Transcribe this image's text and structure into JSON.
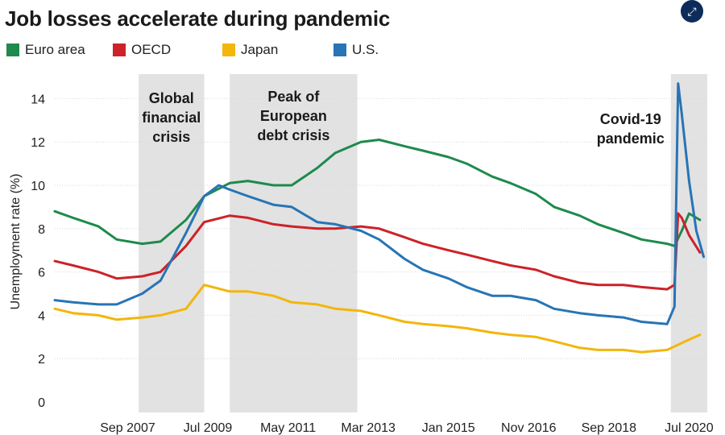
{
  "chart_data": {
    "type": "line",
    "title": "Job losses accelerate during pandemic",
    "xlabel": "",
    "ylabel": "Unemployment rate (%)",
    "ylim": [
      0,
      15
    ],
    "yticks": [
      0,
      2,
      4,
      6,
      8,
      10,
      12,
      14
    ],
    "xlim": [
      "2006-01",
      "2020-12"
    ],
    "xtick_labels": [
      {
        "label": "Sep 2007",
        "date": "2007-09"
      },
      {
        "label": "Jul 2009",
        "date": "2009-07"
      },
      {
        "label": "May 2011",
        "date": "2011-05"
      },
      {
        "label": "Mar 2013",
        "date": "2013-03"
      },
      {
        "label": "Jan 2015",
        "date": "2015-01"
      },
      {
        "label": "Nov 2016",
        "date": "2016-11"
      },
      {
        "label": "Sep 2018",
        "date": "2018-09"
      },
      {
        "label": "Jul 2020",
        "date": "2020-07"
      }
    ],
    "grid": true,
    "legend_position": "top-left",
    "shaded_periods": [
      {
        "label": "Global financial crisis",
        "start": "2007-12",
        "end": "2009-06"
      },
      {
        "label": "Peak of European debt crisis",
        "start": "2010-01",
        "end": "2012-12"
      },
      {
        "label": "Covid-19 pandemic",
        "start": "2020-02",
        "end": "2020-12"
      }
    ],
    "series": [
      {
        "name": "Euro area",
        "color": "#1e8a4c",
        "points": [
          [
            "2006-01",
            8.8
          ],
          [
            "2006-06",
            8.5
          ],
          [
            "2007-01",
            8.1
          ],
          [
            "2007-06",
            7.5
          ],
          [
            "2008-01",
            7.3
          ],
          [
            "2008-06",
            7.4
          ],
          [
            "2009-01",
            8.4
          ],
          [
            "2009-06",
            9.5
          ],
          [
            "2010-01",
            10.1
          ],
          [
            "2010-06",
            10.2
          ],
          [
            "2011-01",
            10.0
          ],
          [
            "2011-06",
            10.0
          ],
          [
            "2012-01",
            10.8
          ],
          [
            "2012-06",
            11.5
          ],
          [
            "2013-01",
            12.0
          ],
          [
            "2013-06",
            12.1
          ],
          [
            "2014-01",
            11.8
          ],
          [
            "2014-06",
            11.6
          ],
          [
            "2015-01",
            11.3
          ],
          [
            "2015-06",
            11.0
          ],
          [
            "2016-01",
            10.4
          ],
          [
            "2016-06",
            10.1
          ],
          [
            "2017-01",
            9.6
          ],
          [
            "2017-06",
            9.0
          ],
          [
            "2018-01",
            8.6
          ],
          [
            "2018-06",
            8.2
          ],
          [
            "2019-01",
            7.8
          ],
          [
            "2019-06",
            7.5
          ],
          [
            "2020-01",
            7.3
          ],
          [
            "2020-03",
            7.2
          ],
          [
            "2020-05",
            7.9
          ],
          [
            "2020-07",
            8.7
          ],
          [
            "2020-10",
            8.4
          ]
        ]
      },
      {
        "name": "OECD",
        "color": "#cc2229",
        "points": [
          [
            "2006-01",
            6.5
          ],
          [
            "2006-06",
            6.3
          ],
          [
            "2007-01",
            6.0
          ],
          [
            "2007-06",
            5.7
          ],
          [
            "2008-01",
            5.8
          ],
          [
            "2008-06",
            6.0
          ],
          [
            "2009-01",
            7.2
          ],
          [
            "2009-06",
            8.3
          ],
          [
            "2010-01",
            8.6
          ],
          [
            "2010-06",
            8.5
          ],
          [
            "2011-01",
            8.2
          ],
          [
            "2011-06",
            8.1
          ],
          [
            "2012-01",
            8.0
          ],
          [
            "2012-06",
            8.0
          ],
          [
            "2013-01",
            8.1
          ],
          [
            "2013-06",
            8.0
          ],
          [
            "2014-01",
            7.6
          ],
          [
            "2014-06",
            7.3
          ],
          [
            "2015-01",
            7.0
          ],
          [
            "2015-06",
            6.8
          ],
          [
            "2016-01",
            6.5
          ],
          [
            "2016-06",
            6.3
          ],
          [
            "2017-01",
            6.1
          ],
          [
            "2017-06",
            5.8
          ],
          [
            "2018-01",
            5.5
          ],
          [
            "2018-06",
            5.4
          ],
          [
            "2019-01",
            5.4
          ],
          [
            "2019-06",
            5.3
          ],
          [
            "2020-01",
            5.2
          ],
          [
            "2020-03",
            5.4
          ],
          [
            "2020-04",
            8.7
          ],
          [
            "2020-05",
            8.5
          ],
          [
            "2020-07",
            7.7
          ],
          [
            "2020-10",
            6.9
          ]
        ]
      },
      {
        "name": "Japan",
        "color": "#f2b60c",
        "points": [
          [
            "2006-01",
            4.3
          ],
          [
            "2006-06",
            4.1
          ],
          [
            "2007-01",
            4.0
          ],
          [
            "2007-06",
            3.8
          ],
          [
            "2008-01",
            3.9
          ],
          [
            "2008-06",
            4.0
          ],
          [
            "2009-01",
            4.3
          ],
          [
            "2009-06",
            5.4
          ],
          [
            "2010-01",
            5.1
          ],
          [
            "2010-06",
            5.1
          ],
          [
            "2011-01",
            4.9
          ],
          [
            "2011-06",
            4.6
          ],
          [
            "2012-01",
            4.5
          ],
          [
            "2012-06",
            4.3
          ],
          [
            "2013-01",
            4.2
          ],
          [
            "2013-06",
            4.0
          ],
          [
            "2014-01",
            3.7
          ],
          [
            "2014-06",
            3.6
          ],
          [
            "2015-01",
            3.5
          ],
          [
            "2015-06",
            3.4
          ],
          [
            "2016-01",
            3.2
          ],
          [
            "2016-06",
            3.1
          ],
          [
            "2017-01",
            3.0
          ],
          [
            "2017-06",
            2.8
          ],
          [
            "2018-01",
            2.5
          ],
          [
            "2018-06",
            2.4
          ],
          [
            "2019-01",
            2.4
          ],
          [
            "2019-06",
            2.3
          ],
          [
            "2020-01",
            2.4
          ],
          [
            "2020-06",
            2.8
          ],
          [
            "2020-10",
            3.1
          ]
        ]
      },
      {
        "name": "U.S.",
        "color": "#2874b5",
        "points": [
          [
            "2006-01",
            4.7
          ],
          [
            "2006-06",
            4.6
          ],
          [
            "2007-01",
            4.5
          ],
          [
            "2007-06",
            4.5
          ],
          [
            "2008-01",
            5.0
          ],
          [
            "2008-06",
            5.6
          ],
          [
            "2009-01",
            7.8
          ],
          [
            "2009-06",
            9.5
          ],
          [
            "2009-10",
            10.0
          ],
          [
            "2010-01",
            9.8
          ],
          [
            "2010-06",
            9.5
          ],
          [
            "2011-01",
            9.1
          ],
          [
            "2011-06",
            9.0
          ],
          [
            "2012-01",
            8.3
          ],
          [
            "2012-06",
            8.2
          ],
          [
            "2013-01",
            7.9
          ],
          [
            "2013-06",
            7.5
          ],
          [
            "2014-01",
            6.6
          ],
          [
            "2014-06",
            6.1
          ],
          [
            "2015-01",
            5.7
          ],
          [
            "2015-06",
            5.3
          ],
          [
            "2016-01",
            4.9
          ],
          [
            "2016-06",
            4.9
          ],
          [
            "2017-01",
            4.7
          ],
          [
            "2017-06",
            4.3
          ],
          [
            "2018-01",
            4.1
          ],
          [
            "2018-06",
            4.0
          ],
          [
            "2019-01",
            3.9
          ],
          [
            "2019-06",
            3.7
          ],
          [
            "2020-01",
            3.6
          ],
          [
            "2020-03",
            4.4
          ],
          [
            "2020-04",
            14.7
          ],
          [
            "2020-05",
            13.3
          ],
          [
            "2020-07",
            10.2
          ],
          [
            "2020-09",
            7.9
          ],
          [
            "2020-11",
            6.7
          ]
        ]
      }
    ]
  }
}
